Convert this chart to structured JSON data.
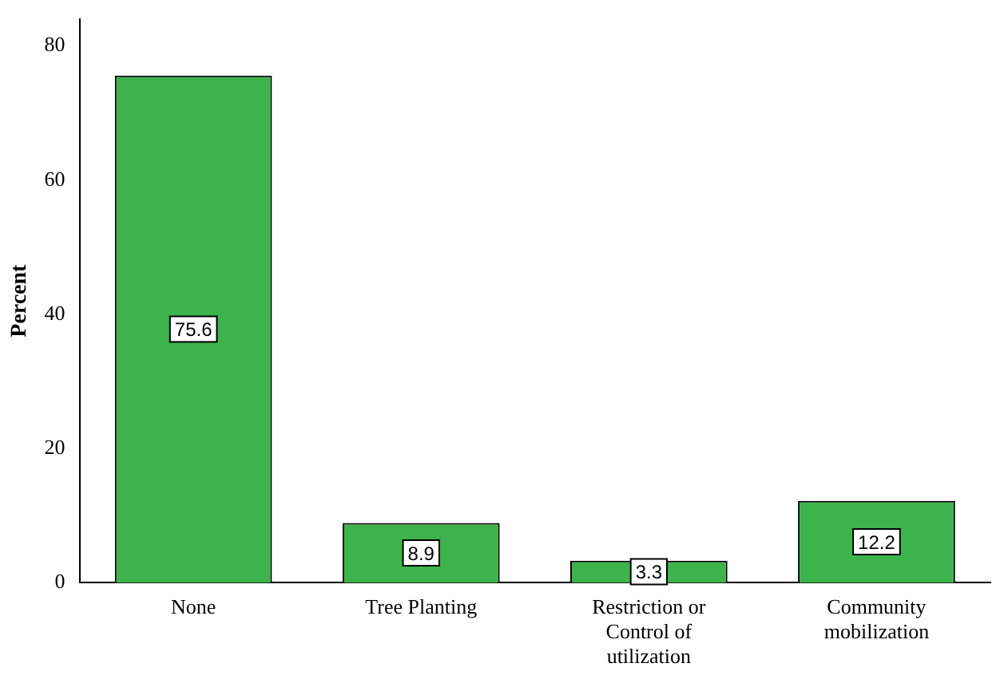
{
  "chart_data": {
    "type": "bar",
    "ylabel": "Percent",
    "categories": [
      "None",
      "Tree Planting",
      "Restriction or Control of utilization",
      "Community mobilization"
    ],
    "values": [
      75.6,
      8.9,
      3.3,
      12.2
    ],
    "color": "#3cb44b",
    "ylim": [
      0,
      84
    ],
    "yticks": [
      0,
      20,
      40,
      60,
      80
    ],
    "grid": false,
    "data_labels": true,
    "legend": false
  }
}
